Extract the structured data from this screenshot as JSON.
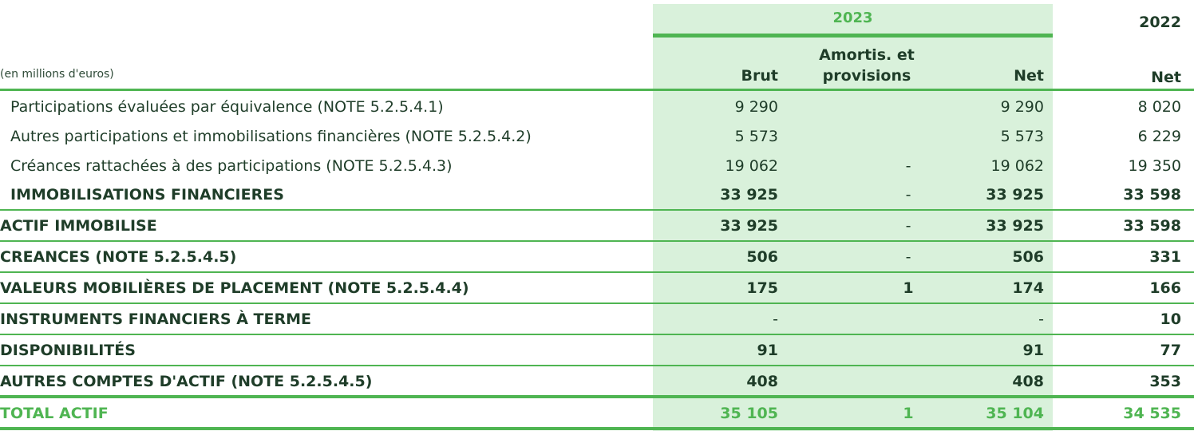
{
  "header": {
    "year_2023": "2023",
    "year_2022": "2022",
    "unit": "(en millions d'euros)",
    "col_brut": "Brut",
    "col_amort_line1": "Amortis. et",
    "col_amort_line2": "provisions",
    "col_net_2023": "Net",
    "col_net_2022": "Net"
  },
  "rows": [
    {
      "label": "Participations évaluées par équivalence (NOTE 5.2.5.4.1)",
      "brut": "9 290",
      "amort": "",
      "net2023": "9 290",
      "net2022": "8 020"
    },
    {
      "label": "Autres participations et immobilisations financières (NOTE 5.2.5.4.2)",
      "brut": "5 573",
      "amort": "",
      "net2023": "5 573",
      "net2022": "6 229"
    },
    {
      "label": "Créances rattachées à des participations (NOTE 5.2.5.4.3)",
      "brut": "19 062",
      "amort": "-",
      "net2023": "19 062",
      "net2022": "19 350"
    },
    {
      "label": "IMMOBILISATIONS FINANCIERES",
      "brut": "33 925",
      "amort": "-",
      "net2023": "33 925",
      "net2022": "33 598"
    },
    {
      "label": "ACTIF IMMOBILISE",
      "brut": "33 925",
      "amort": "-",
      "net2023": "33 925",
      "net2022": "33 598"
    },
    {
      "label": "CREANCES (NOTE 5.2.5.4.5)",
      "brut": "506",
      "amort": "-",
      "net2023": "506",
      "net2022": "331"
    },
    {
      "label": "VALEURS MOBILIÈRES DE PLACEMENT (NOTE 5.2.5.4.4)",
      "brut": "175",
      "amort": "1",
      "net2023": "174",
      "net2022": "166"
    },
    {
      "label": "INSTRUMENTS FINANCIERS À TERME",
      "brut": "-",
      "amort": "",
      "net2023": "-",
      "net2022": "10"
    },
    {
      "label": "DISPONIBILITÉS",
      "brut": "91",
      "amort": "",
      "net2023": "91",
      "net2022": "77"
    },
    {
      "label": "AUTRES COMPTES D'ACTIF (NOTE 5.2.5.4.5)",
      "brut": "408",
      "amort": "",
      "net2023": "408",
      "net2022": "353"
    },
    {
      "label": "TOTAL ACTIF",
      "brut": "35 105",
      "amort": "1",
      "net2023": "35 104",
      "net2022": "34 535"
    }
  ]
}
